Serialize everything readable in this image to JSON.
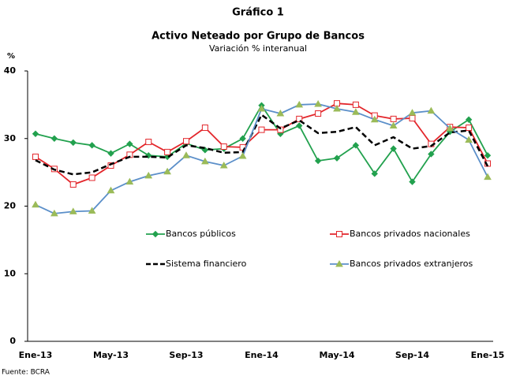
{
  "chart_data": {
    "type": "line",
    "title": "Gráfico 1",
    "subtitle": "Activo Neteado por Grupo de Bancos",
    "subtitle2": "Variación % interanual",
    "y_label": "%",
    "source": "Fuente: BCRA",
    "categories": [
      "Ene-13",
      null,
      null,
      null,
      "May-13",
      null,
      null,
      null,
      "Sep-13",
      null,
      null,
      null,
      "Ene-14",
      null,
      null,
      null,
      "May-14",
      null,
      null,
      null,
      "Sep-14",
      null,
      null,
      null,
      "Ene-15"
    ],
    "ylim": [
      0,
      40
    ],
    "yticks": [
      0,
      10,
      20,
      30,
      40
    ],
    "grid": false,
    "series": [
      {
        "name": "Bancos públicos",
        "color": "#22a14e",
        "marker": "diamond",
        "marker_color": "#22a14e",
        "dashed": false,
        "values": [
          30.7,
          30.0,
          29.4,
          29.0,
          27.8,
          29.2,
          27.5,
          27.3,
          29.3,
          28.3,
          28.5,
          30.0,
          34.9,
          30.7,
          31.9,
          26.7,
          27.1,
          29.0,
          24.8,
          28.5,
          23.6,
          27.7,
          31.0,
          32.8,
          27.5
        ]
      },
      {
        "name": "Bancos privados nacionales",
        "color": "#e3262b",
        "marker": "square",
        "marker_color": "#ffffff",
        "dashed": false,
        "values": [
          27.3,
          25.5,
          23.2,
          24.2,
          26.0,
          27.6,
          29.5,
          28.0,
          29.6,
          31.6,
          28.8,
          28.7,
          31.3,
          31.3,
          32.9,
          33.7,
          35.2,
          35.0,
          33.4,
          32.9,
          33.0,
          29.2,
          31.7,
          31.6,
          26.3
        ]
      },
      {
        "name": "Sistema financiero",
        "color": "#000000",
        "marker": "none",
        "marker_color": "#000000",
        "dashed": true,
        "values": [
          26.8,
          25.4,
          24.7,
          25.0,
          26.2,
          27.3,
          27.3,
          27.2,
          29.0,
          28.6,
          27.9,
          28.0,
          33.5,
          31.5,
          32.7,
          30.8,
          31.0,
          31.7,
          29.0,
          30.2,
          28.5,
          28.9,
          30.9,
          31.2,
          25.9
        ]
      },
      {
        "name": "Bancos privados extranjeros",
        "color": "#5b8fc9",
        "marker": "triangle",
        "marker_color": "#9bbb59",
        "dashed": false,
        "values": [
          20.2,
          18.9,
          19.2,
          19.3,
          22.3,
          23.6,
          24.5,
          25.1,
          27.5,
          26.6,
          26.0,
          27.4,
          34.4,
          33.7,
          35.0,
          35.1,
          34.4,
          33.9,
          32.8,
          31.9,
          33.8,
          34.1,
          31.5,
          29.8,
          24.3
        ]
      }
    ]
  }
}
